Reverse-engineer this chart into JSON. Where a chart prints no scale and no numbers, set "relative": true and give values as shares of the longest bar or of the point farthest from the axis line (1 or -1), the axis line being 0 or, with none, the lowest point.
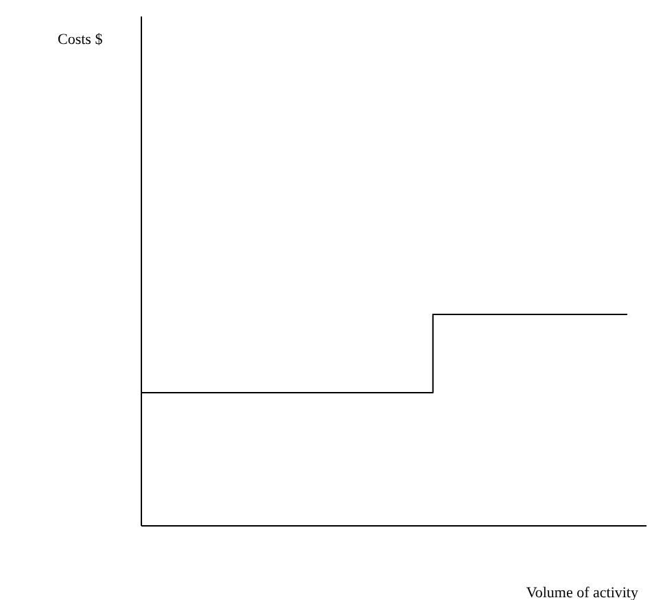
{
  "chart_data": {
    "type": "step",
    "annotations": [
      "Costs $"
    ],
    "xlabel": "Volume of activity",
    "relative": true,
    "categories": [
      null,
      null,
      null,
      null,
      null,
      null
    ],
    "series": [
      {
        "color": "#000000",
        "values": [
          0.63,
          0.63,
          0.63,
          1,
          1,
          1
        ]
      }
    ],
    "marker": "none",
    "line_style": "solid"
  }
}
